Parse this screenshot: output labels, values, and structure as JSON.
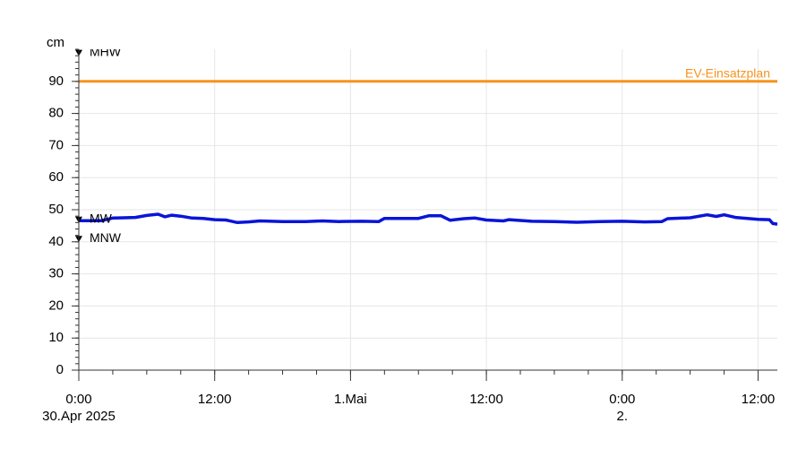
{
  "chart_data": {
    "type": "line",
    "y_label": "cm",
    "x": [
      0,
      2,
      3,
      4,
      5,
      6,
      7,
      7.6,
      8.2,
      9,
      10,
      11,
      12,
      13,
      14,
      15,
      16,
      18,
      20,
      21.5,
      23,
      25,
      26.5,
      27,
      29,
      30,
      30.9,
      32,
      32.8,
      34,
      35,
      36,
      37.5,
      38,
      40,
      42,
      44,
      46,
      48,
      50,
      51.5,
      52,
      54,
      55.5,
      56.3,
      57,
      58,
      60,
      61,
      61.3,
      61.7
    ],
    "series": [
      {
        "color": "#0a14d8",
        "values": [
          46.6,
          46.6,
          47.4,
          47.5,
          47.6,
          48.2,
          48.6,
          47.8,
          48.3,
          48.0,
          47.4,
          47.3,
          46.9,
          46.8,
          46.0,
          46.2,
          46.5,
          46.3,
          46.3,
          46.5,
          46.3,
          46.4,
          46.3,
          47.3,
          47.3,
          47.3,
          48.1,
          48.1,
          46.7,
          47.2,
          47.4,
          46.8,
          46.5,
          46.9,
          46.4,
          46.3,
          46.1,
          46.3,
          46.4,
          46.2,
          46.3,
          47.2,
          47.5,
          48.4,
          47.9,
          48.4,
          47.6,
          47.0,
          46.9,
          45.7,
          45.5
        ]
      }
    ],
    "xlim": [
      0,
      61.7
    ],
    "xticks": [
      {
        "value": 0,
        "label": "0:00"
      },
      {
        "value": 12,
        "label": "12:00"
      },
      {
        "value": 24,
        "label": "1.Mai"
      },
      {
        "value": 36,
        "label": "12:00"
      },
      {
        "value": 48,
        "label": "0:00"
      },
      {
        "value": 60,
        "label": "12:00"
      }
    ],
    "x_sublabels": [
      {
        "value": 0,
        "label": "30.Apr 2025"
      },
      {
        "value": 48,
        "label": "2."
      }
    ],
    "ylim": [
      0,
      100
    ],
    "yticks": [
      0,
      10,
      20,
      30,
      40,
      50,
      60,
      70,
      80,
      90
    ],
    "y_minor_step": 2,
    "x_minor_step": 3,
    "grid": true,
    "reference_lines": [
      {
        "label": "EV-Einsatzplan",
        "value": 90,
        "color": "#f7931e"
      }
    ],
    "markers": [
      {
        "label": "MHW",
        "value": 99
      },
      {
        "label": "MW",
        "value": 47
      },
      {
        "label": "MNW",
        "value": 41
      }
    ]
  }
}
